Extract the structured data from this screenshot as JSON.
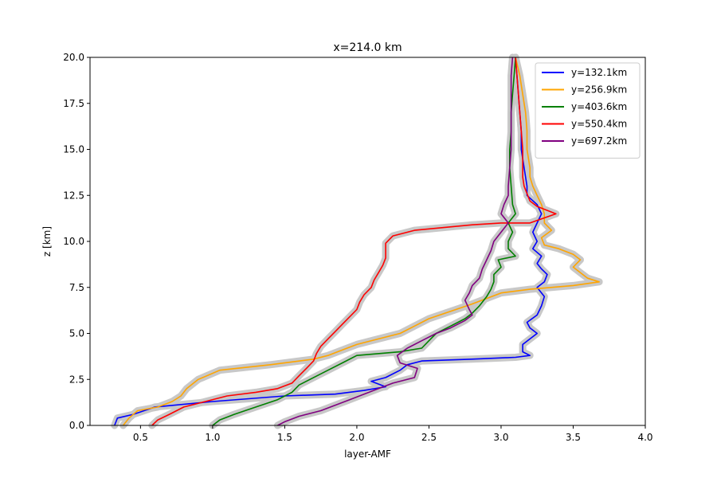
{
  "chart_data": {
    "type": "line",
    "title": "x=214.0 km",
    "xlabel": "layer-AMF",
    "ylabel": "z [km]",
    "xlim": [
      0.15,
      4.0
    ],
    "ylim": [
      0,
      20
    ],
    "xticks": [
      "0.5",
      "1.0",
      "1.5",
      "2.0",
      "2.5",
      "3.0",
      "3.5",
      "4.0"
    ],
    "yticks": [
      "0.0",
      "2.5",
      "5.0",
      "7.5",
      "10.0",
      "12.5",
      "15.0",
      "17.5",
      "20.0"
    ],
    "grid": false,
    "legend_position": "top-right",
    "uncertainty_band_color": "#c8c8c8",
    "series": [
      {
        "name": "y=132.1km",
        "color": "#0000ff",
        "points": [
          [
            0.32,
            0
          ],
          [
            0.34,
            0.4
          ],
          [
            0.45,
            0.6
          ],
          [
            0.6,
            1.0
          ],
          [
            1.0,
            1.3
          ],
          [
            1.5,
            1.6
          ],
          [
            1.85,
            1.7
          ],
          [
            2.05,
            1.9
          ],
          [
            2.2,
            2.1
          ],
          [
            2.1,
            2.4
          ],
          [
            2.2,
            2.6
          ],
          [
            2.3,
            3.0
          ],
          [
            2.35,
            3.3
          ],
          [
            2.45,
            3.5
          ],
          [
            2.8,
            3.6
          ],
          [
            3.1,
            3.7
          ],
          [
            3.2,
            3.8
          ],
          [
            3.15,
            4.0
          ],
          [
            3.15,
            4.4
          ],
          [
            3.2,
            4.7
          ],
          [
            3.25,
            5.0
          ],
          [
            3.2,
            5.3
          ],
          [
            3.18,
            5.6
          ],
          [
            3.25,
            6.0
          ],
          [
            3.28,
            6.5
          ],
          [
            3.3,
            7.0
          ],
          [
            3.25,
            7.5
          ],
          [
            3.3,
            7.8
          ],
          [
            3.32,
            8.2
          ],
          [
            3.28,
            8.5
          ],
          [
            3.25,
            8.8
          ],
          [
            3.28,
            9.2
          ],
          [
            3.22,
            9.6
          ],
          [
            3.25,
            10.0
          ],
          [
            3.22,
            10.5
          ],
          [
            3.25,
            11.0
          ],
          [
            3.28,
            11.5
          ],
          [
            3.25,
            12.0
          ],
          [
            3.18,
            12.5
          ],
          [
            3.18,
            13.0
          ],
          [
            3.17,
            13.5
          ],
          [
            3.16,
            14.0
          ],
          [
            3.15,
            14.5
          ],
          [
            3.14,
            15.0
          ],
          [
            3.14,
            16.0
          ],
          [
            3.13,
            17.0
          ],
          [
            3.12,
            18.0
          ],
          [
            3.11,
            19.0
          ],
          [
            3.1,
            20.0
          ]
        ]
      },
      {
        "name": "y=256.9km",
        "color": "#ffa500",
        "points": [
          [
            0.38,
            0
          ],
          [
            0.42,
            0.4
          ],
          [
            0.48,
            0.8
          ],
          [
            0.62,
            1.0
          ],
          [
            0.72,
            1.3
          ],
          [
            0.78,
            1.6
          ],
          [
            0.82,
            2.0
          ],
          [
            0.9,
            2.5
          ],
          [
            1.05,
            3.0
          ],
          [
            1.4,
            3.3
          ],
          [
            1.7,
            3.6
          ],
          [
            1.8,
            3.8
          ],
          [
            1.9,
            4.1
          ],
          [
            2.0,
            4.4
          ],
          [
            2.15,
            4.7
          ],
          [
            2.3,
            5.0
          ],
          [
            2.4,
            5.4
          ],
          [
            2.5,
            5.8
          ],
          [
            2.65,
            6.2
          ],
          [
            2.8,
            6.6
          ],
          [
            2.9,
            6.9
          ],
          [
            3.0,
            7.2
          ],
          [
            3.2,
            7.4
          ],
          [
            3.5,
            7.6
          ],
          [
            3.68,
            7.8
          ],
          [
            3.6,
            8.0
          ],
          [
            3.55,
            8.3
          ],
          [
            3.5,
            8.6
          ],
          [
            3.55,
            9.0
          ],
          [
            3.5,
            9.3
          ],
          [
            3.4,
            9.6
          ],
          [
            3.3,
            9.8
          ],
          [
            3.28,
            10.2
          ],
          [
            3.35,
            10.6
          ],
          [
            3.3,
            11.0
          ],
          [
            3.3,
            11.5
          ],
          [
            3.28,
            12.0
          ],
          [
            3.25,
            12.5
          ],
          [
            3.22,
            13.0
          ],
          [
            3.2,
            13.5
          ],
          [
            3.2,
            14.0
          ],
          [
            3.18,
            15.0
          ],
          [
            3.18,
            16.0
          ],
          [
            3.17,
            17.0
          ],
          [
            3.15,
            18.0
          ],
          [
            3.13,
            19.0
          ],
          [
            3.1,
            20.0
          ]
        ]
      },
      {
        "name": "y=403.6km",
        "color": "#008000",
        "points": [
          [
            1.0,
            0
          ],
          [
            1.05,
            0.3
          ],
          [
            1.15,
            0.6
          ],
          [
            1.3,
            1.0
          ],
          [
            1.45,
            1.4
          ],
          [
            1.55,
            1.8
          ],
          [
            1.6,
            2.2
          ],
          [
            1.7,
            2.6
          ],
          [
            1.8,
            3.0
          ],
          [
            1.9,
            3.4
          ],
          [
            2.0,
            3.8
          ],
          [
            2.3,
            4.0
          ],
          [
            2.45,
            4.2
          ],
          [
            2.5,
            4.6
          ],
          [
            2.55,
            5.0
          ],
          [
            2.65,
            5.4
          ],
          [
            2.75,
            5.8
          ],
          [
            2.8,
            6.1
          ],
          [
            2.85,
            6.5
          ],
          [
            2.9,
            7.0
          ],
          [
            2.93,
            7.4
          ],
          [
            2.95,
            7.8
          ],
          [
            2.95,
            8.2
          ],
          [
            3.0,
            8.6
          ],
          [
            2.98,
            9.0
          ],
          [
            3.1,
            9.2
          ],
          [
            3.05,
            9.6
          ],
          [
            3.05,
            10.0
          ],
          [
            3.08,
            10.5
          ],
          [
            3.05,
            11.0
          ],
          [
            3.1,
            11.5
          ],
          [
            3.08,
            12.0
          ],
          [
            3.07,
            13.0
          ],
          [
            3.06,
            14.0
          ],
          [
            3.06,
            15.0
          ],
          [
            3.07,
            16.0
          ],
          [
            3.07,
            17.0
          ],
          [
            3.08,
            18.0
          ],
          [
            3.09,
            19.0
          ],
          [
            3.1,
            20.0
          ]
        ]
      },
      {
        "name": "y=550.4km",
        "color": "#ff0000",
        "points": [
          [
            0.58,
            0
          ],
          [
            0.62,
            0.3
          ],
          [
            0.7,
            0.6
          ],
          [
            0.8,
            1.0
          ],
          [
            0.95,
            1.3
          ],
          [
            1.1,
            1.6
          ],
          [
            1.3,
            1.8
          ],
          [
            1.45,
            2.0
          ],
          [
            1.55,
            2.3
          ],
          [
            1.6,
            2.7
          ],
          [
            1.65,
            3.1
          ],
          [
            1.7,
            3.5
          ],
          [
            1.72,
            3.9
          ],
          [
            1.75,
            4.3
          ],
          [
            1.8,
            4.7
          ],
          [
            1.85,
            5.1
          ],
          [
            1.9,
            5.5
          ],
          [
            1.95,
            5.9
          ],
          [
            2.0,
            6.3
          ],
          [
            2.02,
            6.7
          ],
          [
            2.05,
            7.1
          ],
          [
            2.1,
            7.5
          ],
          [
            2.12,
            7.9
          ],
          [
            2.15,
            8.3
          ],
          [
            2.18,
            8.7
          ],
          [
            2.2,
            9.1
          ],
          [
            2.2,
            9.5
          ],
          [
            2.2,
            9.9
          ],
          [
            2.25,
            10.3
          ],
          [
            2.4,
            10.6
          ],
          [
            2.8,
            10.9
          ],
          [
            3.0,
            11.0
          ],
          [
            3.2,
            11.0
          ],
          [
            3.38,
            11.5
          ],
          [
            3.25,
            11.9
          ],
          [
            3.2,
            12.2
          ],
          [
            3.18,
            12.6
          ],
          [
            3.16,
            13.0
          ],
          [
            3.15,
            13.5
          ],
          [
            3.15,
            14.0
          ],
          [
            3.15,
            15.0
          ],
          [
            3.14,
            16.0
          ],
          [
            3.13,
            17.0
          ],
          [
            3.12,
            18.0
          ],
          [
            3.11,
            19.0
          ],
          [
            3.1,
            20.0
          ]
        ]
      },
      {
        "name": "y=697.2km",
        "color": "#800080",
        "points": [
          [
            1.45,
            0
          ],
          [
            1.5,
            0.2
          ],
          [
            1.6,
            0.5
          ],
          [
            1.75,
            0.8
          ],
          [
            1.85,
            1.1
          ],
          [
            1.95,
            1.4
          ],
          [
            2.05,
            1.7
          ],
          [
            2.15,
            2.0
          ],
          [
            2.25,
            2.3
          ],
          [
            2.4,
            2.6
          ],
          [
            2.42,
            3.1
          ],
          [
            2.3,
            3.4
          ],
          [
            2.28,
            3.8
          ],
          [
            2.35,
            4.2
          ],
          [
            2.45,
            4.6
          ],
          [
            2.55,
            5.0
          ],
          [
            2.65,
            5.3
          ],
          [
            2.75,
            5.7
          ],
          [
            2.8,
            6.0
          ],
          [
            2.78,
            6.3
          ],
          [
            2.75,
            6.8
          ],
          [
            2.78,
            7.2
          ],
          [
            2.8,
            7.6
          ],
          [
            2.85,
            8.0
          ],
          [
            2.87,
            8.5
          ],
          [
            2.9,
            9.0
          ],
          [
            2.93,
            9.5
          ],
          [
            2.95,
            10.0
          ],
          [
            3.0,
            10.5
          ],
          [
            3.05,
            11.0
          ],
          [
            3.0,
            11.5
          ],
          [
            3.02,
            12.0
          ],
          [
            3.05,
            12.5
          ],
          [
            3.05,
            13.0
          ],
          [
            3.06,
            14.0
          ],
          [
            3.07,
            15.0
          ],
          [
            3.07,
            16.0
          ],
          [
            3.07,
            17.0
          ],
          [
            3.07,
            18.0
          ],
          [
            3.07,
            19.0
          ],
          [
            3.08,
            20.0
          ]
        ]
      }
    ]
  }
}
